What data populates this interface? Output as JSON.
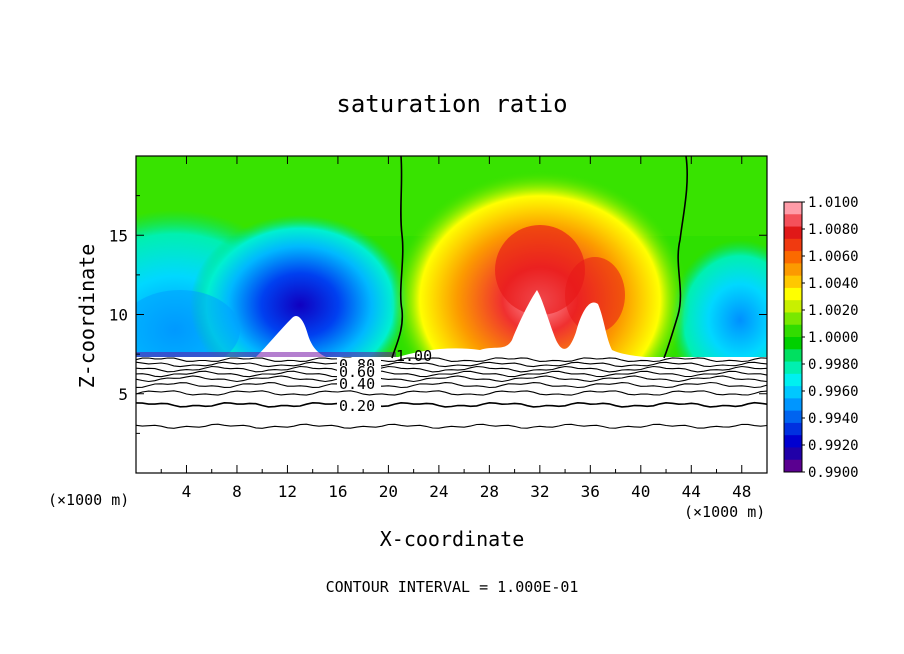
{
  "chart_data": {
    "type": "heatmap",
    "title": "saturation ratio",
    "xlabel": "X-coordinate",
    "ylabel": "Z-coordinate",
    "x_unit_label": "(×1000 m)",
    "x_unit_label_bottom": "(×1000 m)",
    "xlim": [
      0,
      50
    ],
    "ylim": [
      0,
      20
    ],
    "x_ticks": [
      4,
      8,
      12,
      16,
      20,
      24,
      28,
      32,
      36,
      40,
      44,
      48
    ],
    "y_ticks": [
      5,
      10,
      15
    ],
    "footer": "CONTOUR INTERVAL = 1.000E-01",
    "colorbar": {
      "labels": [
        "1.0100",
        "1.0080",
        "1.0060",
        "1.0040",
        "1.0020",
        "1.0000",
        "0.9980",
        "0.9960",
        "0.9940",
        "0.9920",
        "0.9900"
      ],
      "colors": [
        "#ff9ca8",
        "#f4505a",
        "#e01818",
        "#f03a10",
        "#fb6a00",
        "#fc9a00",
        "#ffc800",
        "#ffff00",
        "#c8f000",
        "#78e800",
        "#32dc00",
        "#00d000",
        "#00e060",
        "#00f0b0",
        "#00f0f0",
        "#00c8ff",
        "#0096ff",
        "#0064f0",
        "#0030e0",
        "#0000d0",
        "#2000a8",
        "#5a0090"
      ]
    },
    "contour_labels": [
      {
        "text": "1.00",
        "x": 21.6,
        "y": 7.6
      },
      {
        "text": "0.80",
        "x": 18.3,
        "y": 6.8
      },
      {
        "text": "0.60",
        "x": 18.3,
        "y": 6.3
      },
      {
        "text": "0.40",
        "x": 18.3,
        "y": 5.6
      },
      {
        "text": "0.20",
        "x": 18.3,
        "y": 4.2
      }
    ],
    "contour_lines": [
      {
        "level": 0.9,
        "z": 7.15,
        "amp": 0.1
      },
      {
        "level": 0.8,
        "z": 6.85,
        "amp": 0.1
      },
      {
        "level": 0.7,
        "z": 6.55,
        "amp": 0.12
      },
      {
        "level": 0.6,
        "z": 6.25,
        "amp": 0.12
      },
      {
        "level": 0.5,
        "z": 5.95,
        "amp": 0.12
      },
      {
        "level": 0.4,
        "z": 5.55,
        "amp": 0.12
      },
      {
        "level": 0.3,
        "z": 5.05,
        "amp": 0.12
      },
      {
        "level": 0.2,
        "z": 4.3,
        "amp": 0.1
      },
      {
        "level": 0.1,
        "z": 2.95,
        "amp": 0.08
      }
    ]
  }
}
